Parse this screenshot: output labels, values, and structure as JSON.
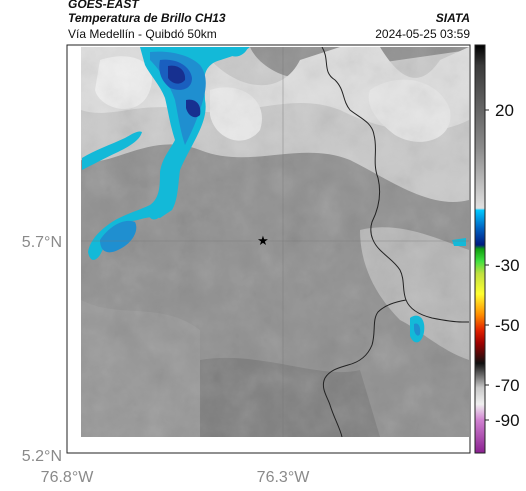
{
  "header": {
    "satellite": "GOES-EAST",
    "product": "Temperatura de Brillo CH13",
    "region": "Vía Medellín - Quibdó 50km",
    "agency": "SIATA",
    "timestamp": "2024-05-25 03:59"
  },
  "map": {
    "lon_labels": [
      "76.8°W",
      "76.3°W"
    ],
    "lat_labels": [
      "5.7°N",
      "5.2°N"
    ],
    "marker": "star-marker"
  },
  "colorbar": {
    "ticks": [
      "20",
      "-30",
      "-50",
      "-70",
      "-90"
    ]
  }
}
